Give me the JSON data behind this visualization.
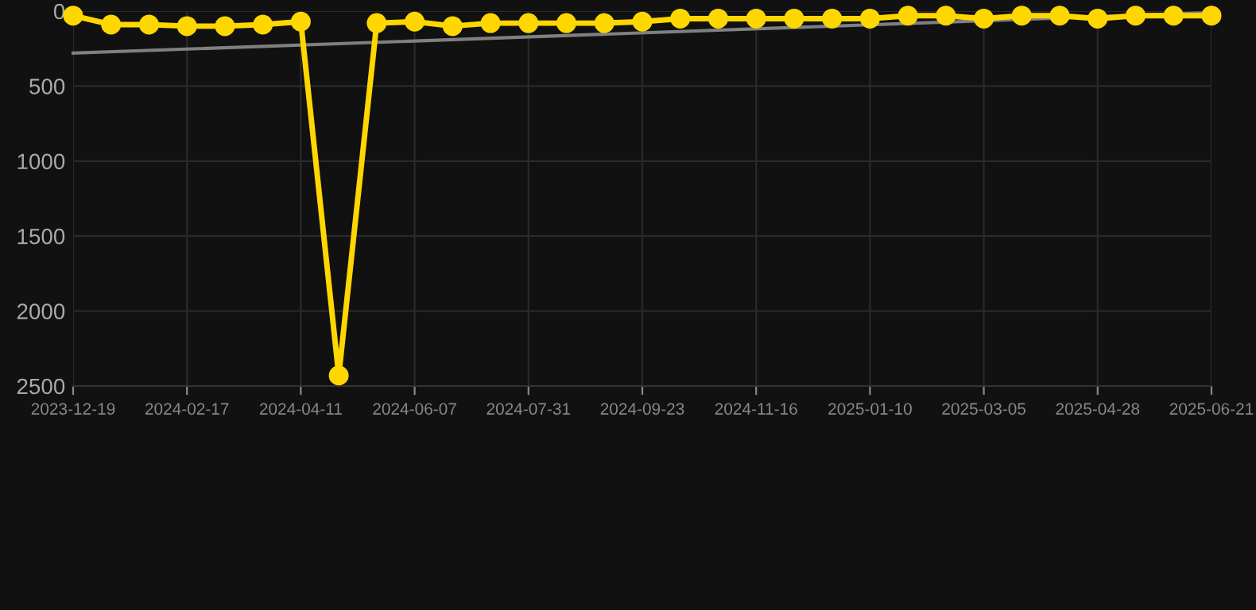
{
  "chart_data": {
    "type": "line",
    "categories": [
      "2023-12-19",
      null,
      null,
      "2024-02-17",
      null,
      null,
      "2024-04-11",
      null,
      null,
      "2024-06-07",
      null,
      null,
      "2024-07-31",
      null,
      null,
      "2024-09-23",
      null,
      null,
      "2024-11-16",
      null,
      null,
      "2025-01-10",
      null,
      null,
      "2025-03-05",
      null,
      null,
      "2025-04-28",
      null,
      null,
      "2025-06-21"
    ],
    "series": [
      {
        "color": "#ffd700",
        "marker": "circle",
        "values": [
          30,
          90,
          90,
          100,
          100,
          90,
          70,
          2430,
          80,
          70,
          100,
          80,
          80,
          80,
          80,
          70,
          50,
          50,
          50,
          50,
          50,
          50,
          30,
          30,
          50,
          30,
          30,
          50,
          30,
          30,
          30
        ]
      },
      {
        "type": "line",
        "color": "#808080",
        "marker": "none",
        "values": [
          280,
          null,
          null,
          null,
          null,
          null,
          null,
          null,
          null,
          null,
          null,
          null,
          null,
          null,
          null,
          null,
          null,
          null,
          null,
          null,
          null,
          null,
          null,
          null,
          null,
          null,
          null,
          null,
          null,
          null,
          10
        ]
      }
    ],
    "ylim": [
      2500,
      0
    ],
    "yticks": [
      0,
      500,
      1000,
      1500,
      2000,
      2500
    ],
    "grid": true
  }
}
